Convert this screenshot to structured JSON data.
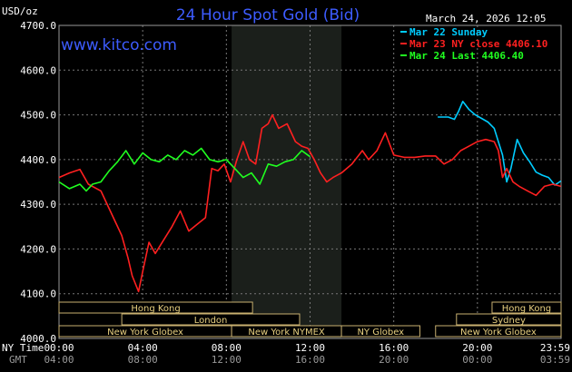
{
  "header": {
    "title": "24 Hour Spot Gold (Bid)",
    "date": "March 24, 2026 12:05",
    "unit": "USD/oz",
    "site": "www.kitco.com"
  },
  "legend": [
    {
      "label": "Mar 22 Sunday",
      "color": "#00ccff"
    },
    {
      "label": "Mar 23 NY close 4406.10",
      "color": "#ff2020"
    },
    {
      "label": "Mar 24 Last 4406.40",
      "color": "#20ff20"
    }
  ],
  "axis_labels": {
    "ny_time": "NY Time",
    "gmt": "GMT"
  },
  "sessions": [
    {
      "row": 0,
      "label": "Hong Kong",
      "t0": 0,
      "t1": 9.25
    },
    {
      "row": 0,
      "label": "Hong Kong",
      "t0": 20.7,
      "t1": 24
    },
    {
      "row": 1,
      "label": "London",
      "t0": 3,
      "t1": 11.5
    },
    {
      "row": 1,
      "label": "Sydney",
      "t0": 19,
      "t1": 24
    },
    {
      "row": 2,
      "label": "New York Globex",
      "t0": 0,
      "t1": 8.25
    },
    {
      "row": 2,
      "label": "New York NYMEX",
      "t0": 8.25,
      "t1": 13.5
    },
    {
      "row": 2,
      "label": "NY Globex",
      "t0": 13.5,
      "t1": 17.25
    },
    {
      "row": 2,
      "label": "New York Globex",
      "t0": 18,
      "t1": 24
    }
  ],
  "chart_data": {
    "type": "line",
    "title": "24 Hour Spot Gold (Bid)",
    "ylabel": "USD/oz",
    "ylim": [
      4000,
      4700
    ],
    "xlim": [
      0,
      24
    ],
    "grid": true,
    "legend_position": "top-right",
    "y_ticks": [
      "4000.0",
      "4100.0",
      "4200.0",
      "4300.0",
      "4400.0",
      "4500.0",
      "4600.0",
      "4700.0"
    ],
    "x_ticks": [
      "00:00",
      "04:00",
      "08:00",
      "12:00",
      "16:00",
      "20:00",
      "23:59"
    ],
    "x_ticks_gmt": [
      "04:00",
      "08:00",
      "12:00",
      "16:00",
      "20:00",
      "00:00",
      "03:59"
    ],
    "x_tick_hours": [
      0,
      4,
      8,
      12,
      16,
      20,
      24
    ],
    "shaded_hours": [
      8.25,
      13.5
    ],
    "series": [
      {
        "name": "Mar 22 Sunday",
        "color": "#00ccff",
        "x": [
          18.1,
          18.6,
          18.9,
          19.1,
          19.3,
          19.6,
          19.9,
          20.2,
          20.5,
          20.8,
          21.0,
          21.2,
          21.4,
          21.6,
          21.9,
          22.2,
          22.5,
          22.8,
          23.1,
          23.4,
          23.7,
          23.99
        ],
        "values": [
          4495,
          4495,
          4490,
          4508,
          4530,
          4512,
          4500,
          4492,
          4484,
          4470,
          4440,
          4410,
          4350,
          4380,
          4445,
          4415,
          4395,
          4372,
          4365,
          4360,
          4343,
          4352
        ]
      },
      {
        "name": "Mar 23 NY close 4406.10",
        "color": "#ff2020",
        "x": [
          0,
          0.5,
          1.0,
          1.4,
          2.0,
          2.5,
          3.0,
          3.3,
          3.5,
          3.8,
          4.0,
          4.3,
          4.6,
          5.0,
          5.4,
          5.8,
          6.2,
          6.6,
          7.0,
          7.3,
          7.6,
          7.9,
          8.2,
          8.5,
          8.8,
          9.1,
          9.4,
          9.7,
          10.0,
          10.2,
          10.5,
          10.9,
          11.3,
          11.6,
          11.9,
          12.2,
          12.5,
          12.8,
          13.1,
          13.5,
          14.0,
          14.5,
          14.8,
          15.2,
          15.6,
          16.0,
          16.5,
          17.0,
          17.5,
          18.0,
          18.4,
          18.8,
          19.2,
          19.6,
          20.0,
          20.4,
          20.8,
          21.0,
          21.2,
          21.4,
          21.7,
          22.0,
          22.4,
          22.8,
          23.2,
          23.6,
          23.99
        ],
        "values": [
          4360,
          4370,
          4378,
          4345,
          4330,
          4280,
          4230,
          4180,
          4140,
          4105,
          4150,
          4215,
          4190,
          4220,
          4250,
          4285,
          4240,
          4255,
          4270,
          4380,
          4375,
          4390,
          4350,
          4400,
          4440,
          4400,
          4390,
          4470,
          4480,
          4500,
          4470,
          4480,
          4440,
          4430,
          4425,
          4400,
          4370,
          4350,
          4360,
          4370,
          4390,
          4420,
          4400,
          4420,
          4460,
          4410,
          4405,
          4405,
          4408,
          4408,
          4390,
          4400,
          4420,
          4430,
          4440,
          4445,
          4440,
          4420,
          4360,
          4380,
          4350,
          4340,
          4330,
          4320,
          4340,
          4345,
          4340
        ]
      },
      {
        "name": "Mar 24 Last 4406.40",
        "color": "#20ff20",
        "x": [
          0,
          0.5,
          1.0,
          1.3,
          1.6,
          2.0,
          2.4,
          2.8,
          3.2,
          3.6,
          4.0,
          4.4,
          4.8,
          5.2,
          5.6,
          6.0,
          6.4,
          6.8,
          7.2,
          7.6,
          8.0,
          8.4,
          8.8,
          9.2,
          9.6,
          10.0,
          10.4,
          10.8,
          11.2,
          11.6,
          12.0
        ],
        "values": [
          4350,
          4335,
          4345,
          4330,
          4345,
          4350,
          4375,
          4395,
          4420,
          4390,
          4415,
          4400,
          4395,
          4410,
          4400,
          4420,
          4410,
          4425,
          4400,
          4395,
          4400,
          4380,
          4360,
          4370,
          4345,
          4390,
          4385,
          4395,
          4400,
          4420,
          4406.4
        ]
      }
    ]
  }
}
